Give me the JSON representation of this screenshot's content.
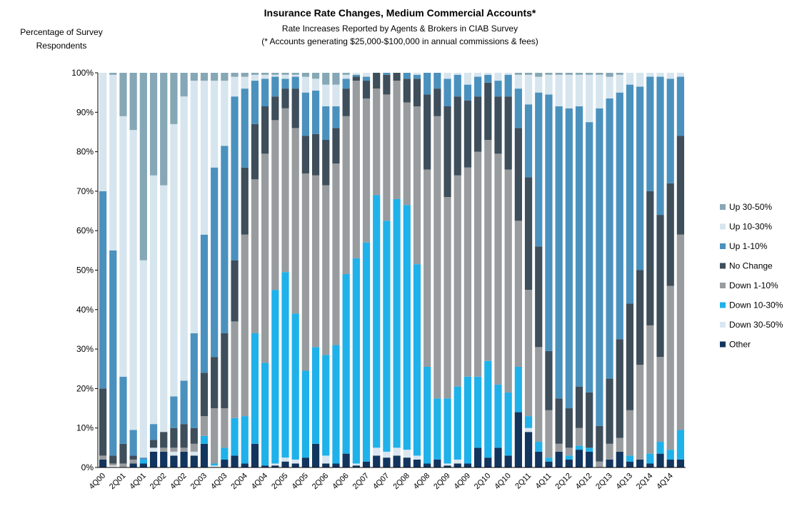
{
  "chart_data": {
    "type": "stacked_bar",
    "title": "Insurance Rate Changes, Medium Commercial Accounts*",
    "subtitle": [
      "Rate Increases Reported by Agents & Brokers in CIAB Survey",
      "(* Accounts generating $25,000-$100,000 in annual commissions & fees)"
    ],
    "y_label": [
      "Percentage of Survey",
      "Respondents"
    ],
    "categories": [
      "4Q00",
      null,
      "2Q01",
      null,
      "4Q01",
      null,
      "2Q02",
      null,
      "4Q02",
      null,
      "2Q03",
      null,
      "4Q03",
      null,
      "2Q04",
      null,
      "4Q04",
      null,
      "2Q05",
      null,
      "4Q05",
      null,
      "2Q06",
      null,
      "4Q06",
      null,
      "2Q07",
      null,
      "4Q07",
      null,
      "2Q08",
      null,
      "4Q08",
      null,
      "2Q09",
      null,
      "4Q09",
      null,
      "2Q10",
      null,
      "4Q10",
      null,
      "2Q11",
      null,
      "4Q11",
      null,
      "2Q12",
      null,
      "4Q12",
      null,
      "2Q13",
      null,
      "4Q13",
      null,
      "2Q14",
      null,
      "4Q14",
      null
    ],
    "series": [
      {
        "name": "Other",
        "color": "#12355e",
        "values": [
          2,
          0,
          0,
          1,
          1,
          4,
          4,
          3,
          4,
          3,
          6,
          0,
          2,
          3,
          1,
          6,
          0.5,
          0.5,
          1.5,
          1,
          2.5,
          6,
          1,
          1,
          3.5,
          0.5,
          1.5,
          3,
          2.5,
          3,
          2.5,
          2,
          1,
          2,
          0.5,
          1,
          1,
          5,
          2.5,
          5,
          3,
          14,
          9,
          4,
          1.5,
          4,
          2,
          4.5,
          4,
          0,
          2,
          4,
          1.5,
          2,
          1,
          3.5,
          2,
          2
        ]
      },
      {
        "name": "Down 30-50%",
        "color": "#d9e6ef",
        "values": [
          0,
          0.5,
          0,
          0,
          0,
          1,
          0,
          1,
          0,
          1,
          0,
          0.5,
          0,
          0,
          0,
          0,
          0,
          0.5,
          1,
          1,
          0,
          0,
          2,
          0,
          0,
          0.5,
          0,
          2,
          1.5,
          2,
          2,
          1,
          0,
          0,
          0.5,
          1,
          0,
          0,
          0,
          0,
          0,
          0,
          1,
          0,
          0,
          0,
          0,
          0,
          0,
          0,
          0,
          0,
          0,
          0,
          0,
          0,
          0,
          0
        ]
      },
      {
        "name": "Down 10-30%",
        "color": "#1fb1ea",
        "values": [
          0,
          0,
          0,
          0,
          1,
          0,
          0,
          0,
          0,
          0,
          2,
          0.5,
          3,
          9.5,
          12,
          28,
          26,
          44,
          47,
          37,
          22,
          24.5,
          25.5,
          30,
          45.5,
          52,
          55.5,
          64,
          58.5,
          63,
          62,
          48.5,
          24.5,
          15.5,
          16.5,
          18.5,
          22,
          18,
          24.5,
          16,
          16,
          11.5,
          3,
          2.5,
          1,
          0,
          1,
          1,
          1,
          0,
          0,
          0,
          1.5,
          0,
          2.5,
          3,
          2.5,
          7.5
        ]
      },
      {
        "name": "Down 1-10%",
        "color": "#989c9f",
        "values": [
          1,
          0.5,
          1,
          1,
          0,
          0,
          1,
          1,
          1,
          2,
          5,
          14,
          10,
          24.5,
          46,
          39,
          53,
          43,
          41.5,
          47,
          50,
          43.5,
          43,
          46,
          40,
          45,
          36.5,
          27,
          32,
          30,
          26,
          40,
          50,
          71.5,
          51,
          53.5,
          53,
          57,
          56,
          58.5,
          56.5,
          37,
          32,
          24,
          12,
          2,
          2,
          4.5,
          0,
          1.5,
          4,
          3.5,
          11.5,
          24,
          32.5,
          21.5,
          41.5,
          49.5
        ]
      },
      {
        "name": "No Change",
        "color": "#3e4e5b",
        "values": [
          17,
          2,
          5,
          1,
          0,
          2,
          4,
          5,
          6,
          4,
          11,
          13,
          19,
          15.5,
          17,
          14,
          12,
          6,
          5,
          10,
          9.5,
          10.5,
          11.5,
          9,
          7,
          1,
          4.5,
          4,
          5,
          2,
          6,
          7,
          19,
          7,
          23,
          20,
          17,
          14,
          14.5,
          14.5,
          18.5,
          23.5,
          28.5,
          25.5,
          15,
          11.5,
          10,
          10.5,
          14,
          9,
          16.5,
          25,
          27,
          24,
          34,
          36,
          26,
          25
        ]
      },
      {
        "name": "Up 1-10%",
        "color": "#4b91be",
        "values": [
          50,
          52,
          17,
          6.5,
          0.5,
          4,
          0,
          8,
          11,
          24,
          35,
          48,
          47.5,
          41.5,
          20,
          11,
          7,
          5,
          2.5,
          3,
          11,
          11,
          8.5,
          5.5,
          2.5,
          0.5,
          1,
          0,
          0.5,
          0,
          1.5,
          1,
          5.5,
          4,
          7,
          5.5,
          4,
          5,
          2,
          4,
          5.5,
          10,
          18.5,
          39,
          65,
          74,
          76,
          71,
          68.5,
          80.5,
          71,
          62.5,
          55.5,
          46.5,
          29,
          35,
          26.5,
          15
        ]
      },
      {
        "name": "Up 10-30%",
        "color": "#d6e5ee",
        "values": [
          30,
          44.5,
          66,
          76,
          50,
          63,
          62.5,
          69,
          72,
          64,
          39,
          22,
          16.5,
          5,
          3,
          1.5,
          1,
          0.5,
          1,
          0.5,
          4,
          3,
          5.5,
          5.5,
          1,
          0.5,
          1,
          0,
          0,
          0,
          0,
          0.5,
          0,
          0,
          1.5,
          0.5,
          3,
          1,
          0.5,
          2,
          0.5,
          3.5,
          7.5,
          4,
          5,
          8,
          8.5,
          8,
          12,
          8.5,
          5.5,
          4.5,
          3,
          3.5,
          1,
          1,
          1.5,
          1
        ]
      },
      {
        "name": "Up 30-50%",
        "color": "#86a7b5",
        "values": [
          0,
          0.5,
          11,
          14.5,
          47.5,
          26,
          28.5,
          13,
          6,
          2,
          2,
          2,
          2,
          1,
          1,
          0.5,
          0.5,
          0.5,
          0.5,
          0.5,
          1,
          1.5,
          3,
          3,
          0.5,
          0,
          0,
          0,
          0,
          0,
          0,
          0,
          0,
          0,
          0,
          0,
          0,
          0,
          0,
          0,
          0,
          0.5,
          0.5,
          1,
          0.5,
          0.5,
          0.5,
          0.5,
          0.5,
          0.5,
          1,
          0.5,
          0,
          0,
          0,
          0,
          0,
          0
        ]
      }
    ],
    "ylim": [
      0,
      100
    ],
    "yticks": [
      {
        "value": 0,
        "label": "0%"
      },
      {
        "value": 10,
        "label": "10%"
      },
      {
        "value": 20,
        "label": "20%"
      },
      {
        "value": 30,
        "label": "30%"
      },
      {
        "value": 40,
        "label": "40%"
      },
      {
        "value": 50,
        "label": "50%"
      },
      {
        "value": 60,
        "label": "60%"
      },
      {
        "value": 70,
        "label": "70%"
      },
      {
        "value": 80,
        "label": "80%"
      },
      {
        "value": 90,
        "label": "90%"
      },
      {
        "value": 100,
        "label": "100%"
      }
    ],
    "grid": false,
    "legend": "right"
  }
}
